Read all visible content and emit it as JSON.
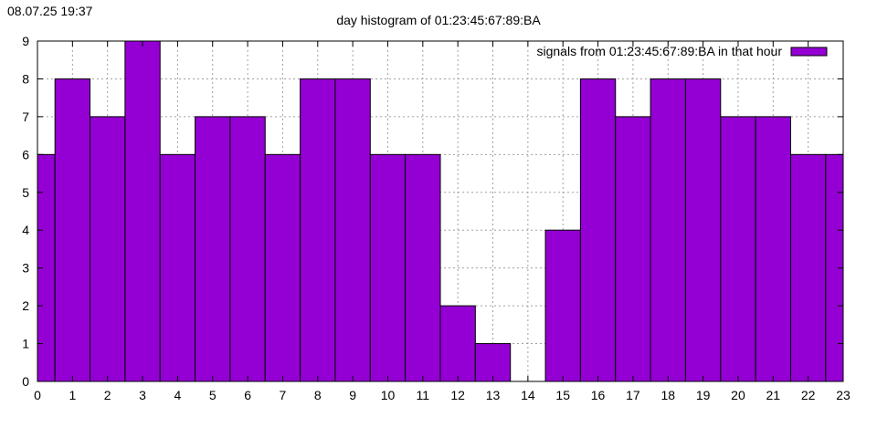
{
  "timestamp": "08.07.25 19:37",
  "chart_data": {
    "type": "bar",
    "title": "day histogram of 01:23:45:67:89:BA",
    "xlabel": "",
    "ylabel": "",
    "categories": [
      "0",
      "1",
      "2",
      "3",
      "4",
      "5",
      "6",
      "7",
      "8",
      "9",
      "10",
      "11",
      "12",
      "13",
      "14",
      "15",
      "16",
      "17",
      "18",
      "19",
      "20",
      "21",
      "22",
      "23"
    ],
    "series": [
      {
        "name": "signals from 01:23:45:67:89:BA in that hour",
        "values": [
          6,
          8,
          7,
          9,
          6,
          7,
          7,
          6,
          8,
          8,
          6,
          6,
          2,
          1,
          0,
          4,
          8,
          7,
          8,
          8,
          7,
          7,
          6,
          6
        ]
      }
    ],
    "xlim": [
      0,
      23
    ],
    "ylim": [
      0,
      9
    ],
    "yticks": [
      0,
      1,
      2,
      3,
      4,
      5,
      6,
      7,
      8,
      9
    ],
    "grid": true,
    "legend_position": "top-right",
    "bar_color": "#9400d3"
  }
}
